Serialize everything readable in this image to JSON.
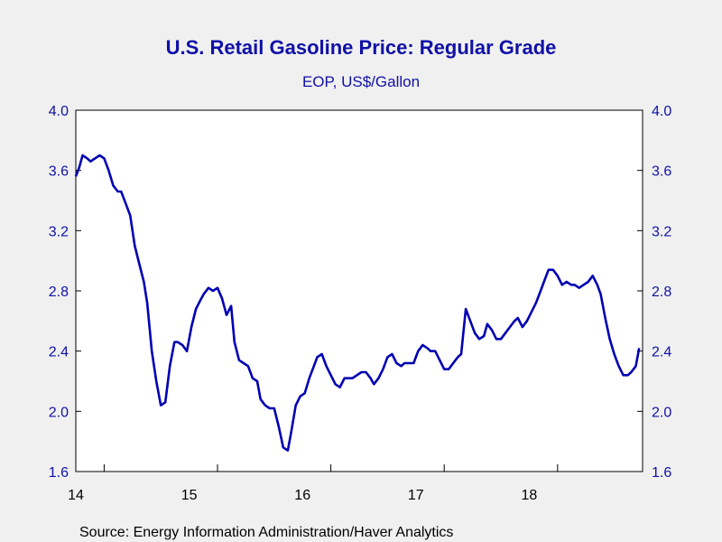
{
  "chart_data": {
    "type": "line",
    "title": "U.S. Retail Gasoline Price: Regular Grade",
    "subtitle": "EOP, US$/Gallon",
    "xlabel": "",
    "ylabel": "",
    "source": "Source:  Energy Information Administration/Haver Analytics",
    "ylim": [
      1.6,
      4.0
    ],
    "yticks": [
      "4.0",
      "3.6",
      "3.2",
      "2.8",
      "2.4",
      "2.0",
      "1.6"
    ],
    "xticks": [
      "14",
      "15",
      "16",
      "17",
      "18"
    ],
    "xrange": [
      2013.75,
      2018.75
    ],
    "grid": false,
    "legend": "none",
    "line_color": "#0000b4",
    "series": [
      {
        "x": [
          2013.75,
          2013.78,
          2013.81,
          2013.85,
          2013.88,
          2013.92,
          2013.96,
          2014.0,
          2014.04,
          2014.08,
          2014.12,
          2014.15,
          2014.19,
          2014.23,
          2014.27,
          2014.31,
          2014.35,
          2014.38,
          2014.42,
          2014.46,
          2014.5,
          2014.54,
          2014.58,
          2014.62,
          2014.65,
          2014.69,
          2014.73,
          2014.77,
          2014.81,
          2014.85,
          2014.88,
          2014.92,
          2014.96,
          2015.0,
          2015.04,
          2015.08,
          2015.12,
          2015.15,
          2015.19,
          2015.23,
          2015.27,
          2015.31,
          2015.35,
          2015.38,
          2015.42,
          2015.46,
          2015.5,
          2015.54,
          2015.58,
          2015.62,
          2015.65,
          2015.69,
          2015.73,
          2015.77,
          2015.81,
          2015.85,
          2015.88,
          2015.92,
          2015.96,
          2016.0,
          2016.04,
          2016.08,
          2016.12,
          2016.15,
          2016.19,
          2016.23,
          2016.27,
          2016.31,
          2016.35,
          2016.38,
          2016.42,
          2016.46,
          2016.5,
          2016.54,
          2016.58,
          2016.62,
          2016.65,
          2016.69,
          2016.73,
          2016.77,
          2016.81,
          2016.85,
          2016.88,
          2016.92,
          2016.96,
          2017.0,
          2017.04,
          2017.08,
          2017.12,
          2017.15,
          2017.19,
          2017.23,
          2017.27,
          2017.31,
          2017.35,
          2017.38,
          2017.42,
          2017.46,
          2017.5,
          2017.54,
          2017.58,
          2017.62,
          2017.65,
          2017.69,
          2017.73,
          2017.77,
          2017.81,
          2017.85,
          2017.88,
          2017.92,
          2017.96,
          2018.0,
          2018.04,
          2018.08,
          2018.12,
          2018.15,
          2018.19,
          2018.23,
          2018.27,
          2018.31,
          2018.35,
          2018.38,
          2018.42,
          2018.46,
          2018.5,
          2018.54,
          2018.58,
          2018.62,
          2018.65,
          2018.69,
          2018.72
        ],
        "values": [
          3.56,
          3.62,
          3.7,
          3.68,
          3.66,
          3.68,
          3.7,
          3.68,
          3.6,
          3.5,
          3.46,
          3.46,
          3.38,
          3.3,
          3.1,
          2.98,
          2.86,
          2.72,
          2.4,
          2.2,
          2.04,
          2.06,
          2.3,
          2.46,
          2.46,
          2.44,
          2.4,
          2.56,
          2.68,
          2.74,
          2.78,
          2.82,
          2.8,
          2.82,
          2.75,
          2.64,
          2.7,
          2.46,
          2.34,
          2.32,
          2.3,
          2.22,
          2.2,
          2.08,
          2.04,
          2.02,
          2.02,
          1.9,
          1.76,
          1.74,
          1.86,
          2.04,
          2.1,
          2.12,
          2.22,
          2.3,
          2.36,
          2.38,
          2.3,
          2.24,
          2.18,
          2.16,
          2.22,
          2.22,
          2.22,
          2.24,
          2.26,
          2.26,
          2.22,
          2.18,
          2.22,
          2.28,
          2.36,
          2.38,
          2.32,
          2.3,
          2.32,
          2.32,
          2.32,
          2.4,
          2.44,
          2.42,
          2.4,
          2.4,
          2.34,
          2.28,
          2.28,
          2.32,
          2.36,
          2.38,
          2.68,
          2.6,
          2.52,
          2.48,
          2.5,
          2.58,
          2.54,
          2.48,
          2.48,
          2.52,
          2.56,
          2.6,
          2.62,
          2.56,
          2.6,
          2.66,
          2.72,
          2.8,
          2.86,
          2.94,
          2.94,
          2.9,
          2.84,
          2.86,
          2.84,
          2.84,
          2.82,
          2.84,
          2.86,
          2.9,
          2.84,
          2.78,
          2.62,
          2.48,
          2.38,
          2.3,
          2.24,
          2.24,
          2.26,
          2.3,
          2.42
        ]
      }
    ]
  }
}
